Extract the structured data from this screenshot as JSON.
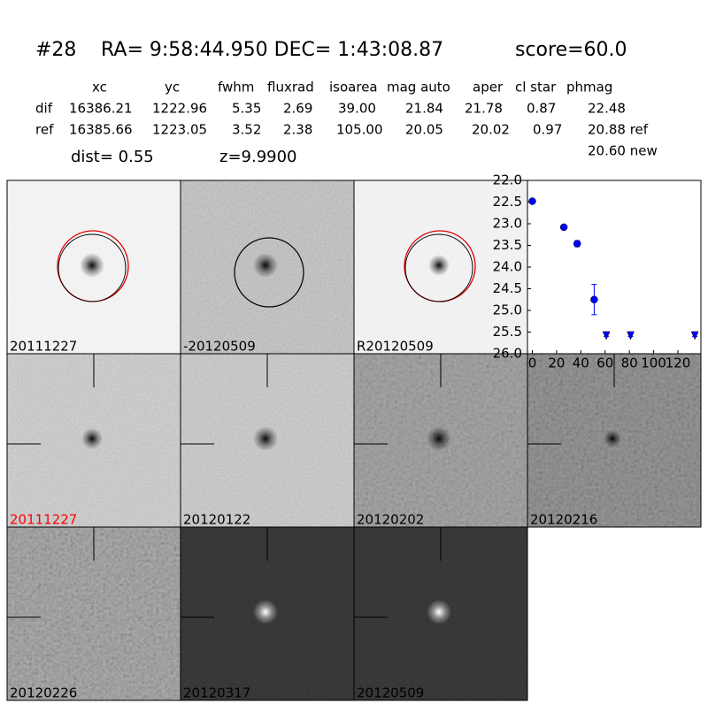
{
  "header": {
    "id": "#28",
    "coords": "RA= 9:58:44.950 DEC= 1:43:08.87",
    "score": "score=60.0"
  },
  "table": {
    "columns": [
      "xc",
      "yc",
      "fwhm",
      "fluxrad",
      "isoarea",
      "mag auto",
      "aper",
      "cl star",
      "phmag"
    ],
    "rows": [
      [
        "dif",
        "16386.21",
        "1222.96",
        "5.35",
        "2.69",
        "39.00",
        "21.84",
        "21.78",
        "0.87",
        "22.48"
      ],
      [
        "ref",
        "16385.66",
        "1223.05",
        "3.52",
        "2.38",
        "105.00",
        "20.05",
        "20.02",
        "0.97",
        "20.88 ref"
      ]
    ],
    "extra": "20.60 new",
    "dist": "dist=  0.55",
    "z": "z=9.9900"
  },
  "panels": [
    {
      "label": "20111227"
    },
    {
      "label": "-20120509"
    },
    {
      "label": "R20120509"
    },
    {
      "label": "20111227"
    },
    {
      "label": "20120122"
    },
    {
      "label": "20120202"
    },
    {
      "label": "20120216"
    },
    {
      "label": "20120226"
    },
    {
      "label": "20120317"
    },
    {
      "label": "20120509"
    }
  ],
  "chart_data": {
    "type": "scatter",
    "color": "#0000ff",
    "x": [
      0,
      26,
      37,
      51,
      61,
      81,
      134
    ],
    "values": [
      22.48,
      23.08,
      23.46,
      24.75,
      25.55,
      25.55,
      25.55
    ],
    "errors": [
      0.02,
      0.03,
      0.07,
      0.35,
      0.05,
      0.05,
      0.05
    ],
    "upper_limit": [
      false,
      false,
      false,
      false,
      true,
      true,
      true
    ],
    "xlim": [
      -4,
      139
    ],
    "ylim": [
      26.0,
      22.0
    ],
    "xticks": [
      0,
      20,
      40,
      60,
      80,
      100,
      120
    ],
    "yticks": [
      {
        "value": 22.0,
        "label": "22.0"
      },
      {
        "value": 22.5,
        "label": "22.5"
      },
      {
        "value": 23.0,
        "label": "23.0"
      },
      {
        "value": 23.5,
        "label": "23.5"
      },
      {
        "value": 24.0,
        "label": "24.0"
      },
      {
        "value": 24.5,
        "label": "24.5"
      },
      {
        "value": 25.0,
        "label": "25.0"
      },
      {
        "value": 25.5,
        "label": "25.5"
      },
      {
        "value": 26.0,
        "label": "26.0"
      }
    ]
  }
}
